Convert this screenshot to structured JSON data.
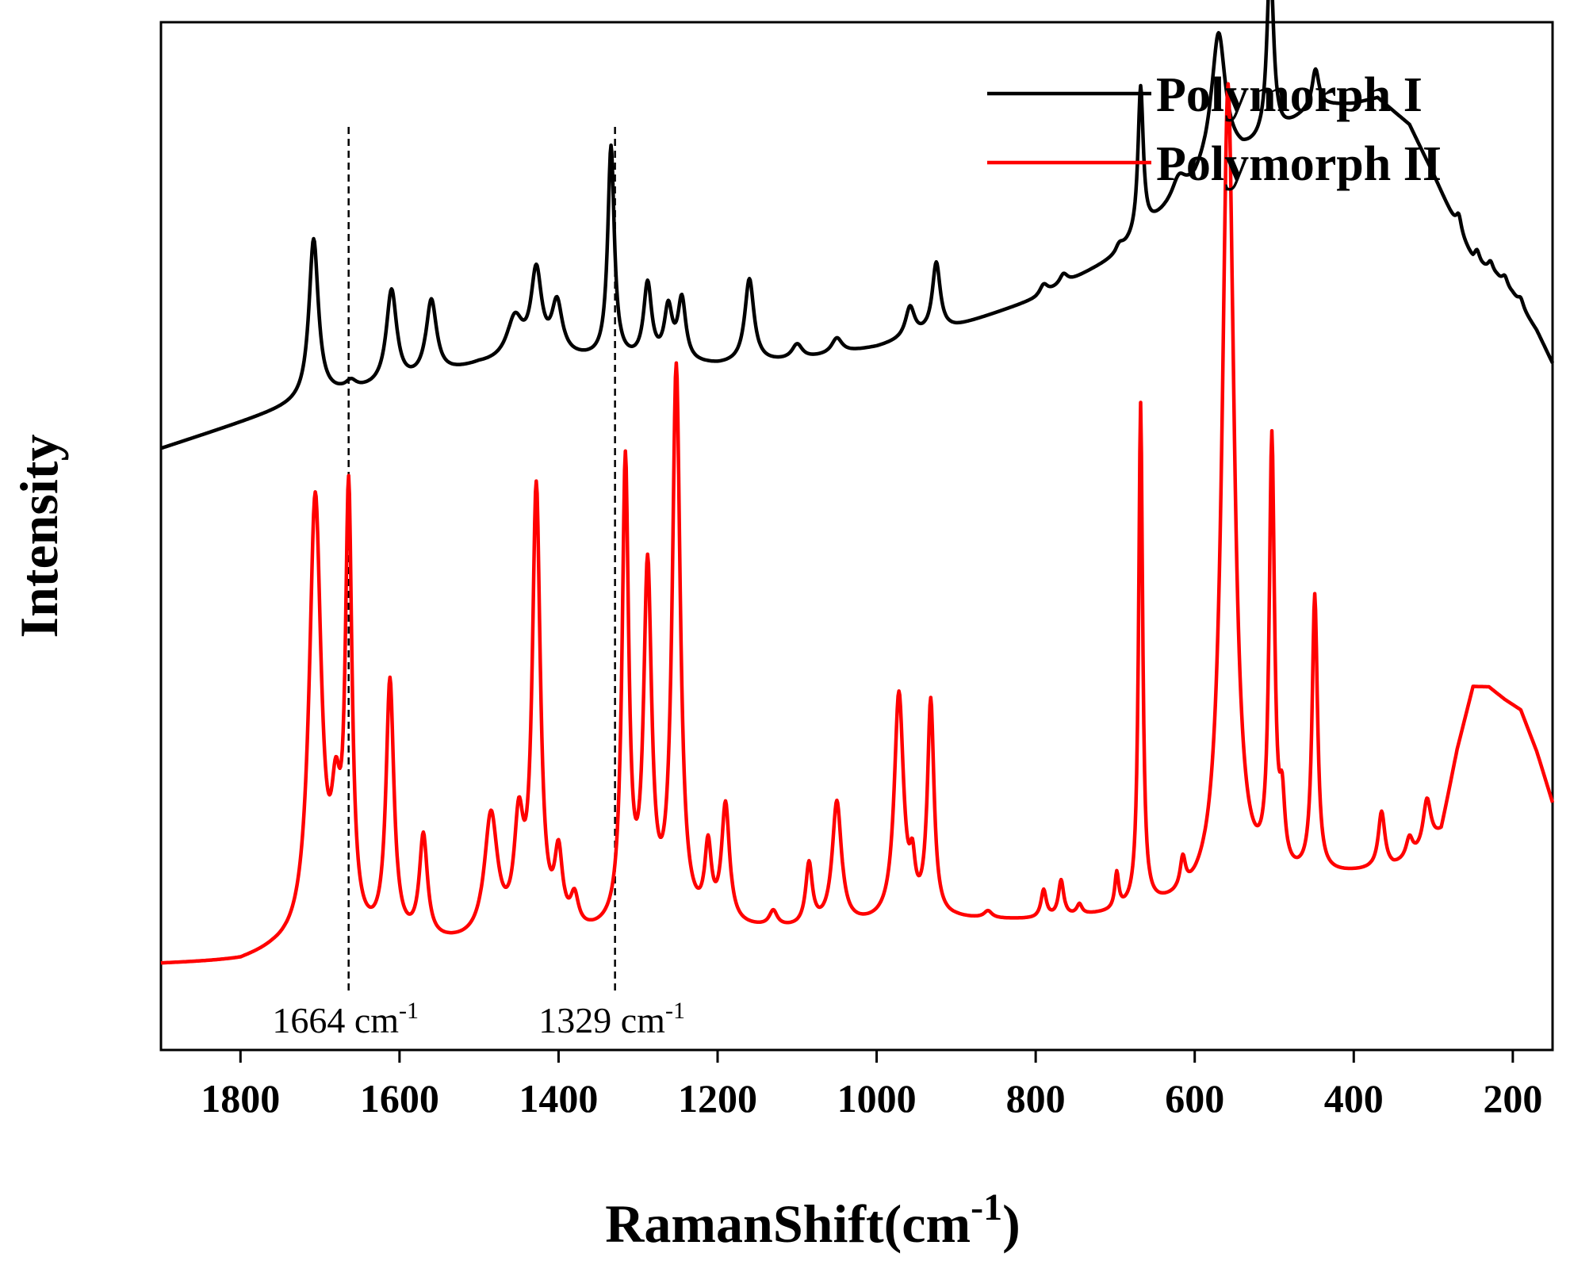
{
  "chart_data": {
    "type": "line",
    "title": "",
    "xlabel": "RamanShift(cm",
    "xlabel_sup": "-1",
    "xlabel_end": ")",
    "ylabel": "Intensity",
    "xlim": [
      1900,
      150
    ],
    "ylim": [
      0,
      100
    ],
    "x_ticks": [
      1800,
      1600,
      1400,
      1200,
      1000,
      800,
      600,
      400,
      200
    ],
    "x_tick_labels": [
      "1800",
      "1600",
      "1400",
      "1200",
      "1000",
      "800",
      "600",
      "400",
      "200"
    ],
    "y_ticks_shown": false,
    "legend_position": "top-right",
    "series": [
      {
        "name": "Polymorph I",
        "color": "#000000",
        "baseline": [
          [
            1900,
            58.5
          ],
          [
            1800,
            61
          ],
          [
            1700,
            63.5
          ],
          [
            1600,
            64.5
          ],
          [
            1500,
            66.5
          ],
          [
            1400,
            67.2
          ],
          [
            1300,
            66.8
          ],
          [
            1200,
            66.5
          ],
          [
            1100,
            67
          ],
          [
            1000,
            68.3
          ],
          [
            900,
            70.3
          ],
          [
            800,
            73
          ],
          [
            700,
            77
          ],
          [
            650,
            80.5
          ],
          [
            600,
            84
          ],
          [
            580,
            86.5
          ],
          [
            560,
            87
          ],
          [
            540,
            87
          ],
          [
            500,
            88.5
          ],
          [
            450,
            91.7
          ],
          [
            400,
            92
          ],
          [
            370,
            92.6
          ],
          [
            330,
            90
          ],
          [
            300,
            85.2
          ],
          [
            270,
            80
          ],
          [
            250,
            76.8
          ],
          [
            220,
            75.2
          ],
          [
            200,
            73.5
          ],
          [
            170,
            70
          ],
          [
            150,
            66.8
          ]
        ],
        "peaks": [
          {
            "x": 1708,
            "h": 15.5,
            "w": 7
          },
          {
            "x": 1661,
            "h": 0.8,
            "w": 8
          },
          {
            "x": 1610,
            "h": 9.3,
            "w": 8
          },
          {
            "x": 1560,
            "h": 7.4,
            "w": 8
          },
          {
            "x": 1455,
            "h": 4.0,
            "w": 12
          },
          {
            "x": 1428,
            "h": 8.2,
            "w": 8
          },
          {
            "x": 1402,
            "h": 5.0,
            "w": 8
          },
          {
            "x": 1334,
            "h": 20.7,
            "w": 5
          },
          {
            "x": 1288,
            "h": 7.4,
            "w": 6
          },
          {
            "x": 1262,
            "h": 5.0,
            "w": 6
          },
          {
            "x": 1245,
            "h": 6.0,
            "w": 6
          },
          {
            "x": 1160,
            "h": 8.2,
            "w": 7
          },
          {
            "x": 1100,
            "h": 1.5,
            "w": 8
          },
          {
            "x": 1050,
            "h": 1.5,
            "w": 8
          },
          {
            "x": 958,
            "h": 3.0,
            "w": 7
          },
          {
            "x": 925,
            "h": 6.7,
            "w": 6
          },
          {
            "x": 790,
            "h": 1.0,
            "w": 6
          },
          {
            "x": 765,
            "h": 1.0,
            "w": 6
          },
          {
            "x": 695,
            "h": 0.8,
            "w": 6
          },
          {
            "x": 668,
            "h": 14.3,
            "w": 4
          },
          {
            "x": 620,
            "h": 2.0,
            "w": 10
          },
          {
            "x": 570,
            "h": 12.0,
            "w": 10
          },
          {
            "x": 505,
            "h": 17.6,
            "w": 5
          },
          {
            "x": 448,
            "h": 3.5,
            "w": 5
          },
          {
            "x": 268,
            "h": 1.6,
            "w": 4
          },
          {
            "x": 245,
            "h": 1.2,
            "w": 4
          },
          {
            "x": 228,
            "h": 1.0,
            "w": 4
          },
          {
            "x": 210,
            "h": 0.9,
            "w": 4
          },
          {
            "x": 190,
            "h": 0.8,
            "w": 4
          }
        ]
      },
      {
        "name": "Polymorph II",
        "color": "#ff0000",
        "baseline": [
          [
            1900,
            8.3
          ],
          [
            1800,
            8.5
          ],
          [
            1760,
            9.3
          ],
          [
            1720,
            9.8
          ],
          [
            1600,
            10.0
          ],
          [
            1500,
            10.0
          ],
          [
            1400,
            10.5
          ],
          [
            1300,
            11.0
          ],
          [
            1200,
            11.5
          ],
          [
            1100,
            11.5
          ],
          [
            1000,
            12.0
          ],
          [
            900,
            12.5
          ],
          [
            800,
            12.5
          ],
          [
            700,
            13.0
          ],
          [
            600,
            14.0
          ],
          [
            500,
            15.5
          ],
          [
            450,
            16.5
          ],
          [
            400,
            17.0
          ],
          [
            350,
            17.5
          ],
          [
            310,
            19.0
          ],
          [
            290,
            21.0
          ],
          [
            270,
            29.0
          ],
          [
            250,
            35.2
          ],
          [
            230,
            35.2
          ],
          [
            210,
            34.0
          ],
          [
            190,
            33.0
          ],
          [
            170,
            29.0
          ],
          [
            150,
            24.0
          ]
        ],
        "peaks": [
          {
            "x": 1706,
            "h": 43.0,
            "w": 9
          },
          {
            "x": 1680,
            "h": 10.0,
            "w": 7
          },
          {
            "x": 1664,
            "h": 42.0,
            "w": 5
          },
          {
            "x": 1612,
            "h": 25.0,
            "w": 6
          },
          {
            "x": 1570,
            "h": 10.0,
            "w": 6
          },
          {
            "x": 1485,
            "h": 12.0,
            "w": 10
          },
          {
            "x": 1450,
            "h": 10.0,
            "w": 7
          },
          {
            "x": 1428,
            "h": 43.0,
            "w": 6
          },
          {
            "x": 1400,
            "h": 7.0,
            "w": 6
          },
          {
            "x": 1380,
            "h": 3.0,
            "w": 6
          },
          {
            "x": 1316,
            "h": 45.0,
            "w": 5
          },
          {
            "x": 1288,
            "h": 34.0,
            "w": 6
          },
          {
            "x": 1252,
            "h": 54.0,
            "w": 6
          },
          {
            "x": 1212,
            "h": 7.0,
            "w": 5
          },
          {
            "x": 1190,
            "h": 11.5,
            "w": 6
          },
          {
            "x": 1130,
            "h": 1.5,
            "w": 6
          },
          {
            "x": 1085,
            "h": 6.0,
            "w": 5
          },
          {
            "x": 1050,
            "h": 12.0,
            "w": 7
          },
          {
            "x": 972,
            "h": 22.0,
            "w": 7
          },
          {
            "x": 955,
            "h": 4.0,
            "w": 4
          },
          {
            "x": 932,
            "h": 21.0,
            "w": 5
          },
          {
            "x": 860,
            "h": 0.7,
            "w": 6
          },
          {
            "x": 790,
            "h": 2.7,
            "w": 4
          },
          {
            "x": 768,
            "h": 3.5,
            "w": 4
          },
          {
            "x": 745,
            "h": 1.0,
            "w": 4
          },
          {
            "x": 698,
            "h": 3.5,
            "w": 3
          },
          {
            "x": 668,
            "h": 49.0,
            "w": 3
          },
          {
            "x": 615,
            "h": 3.0,
            "w": 4
          },
          {
            "x": 558,
            "h": 79.0,
            "w": 9
          },
          {
            "x": 503,
            "h": 42.0,
            "w": 4
          },
          {
            "x": 490,
            "h": 6.0,
            "w": 4
          },
          {
            "x": 449,
            "h": 27.0,
            "w": 4
          },
          {
            "x": 365,
            "h": 5.5,
            "w": 5
          },
          {
            "x": 330,
            "h": 2.0,
            "w": 5
          },
          {
            "x": 308,
            "h": 5.0,
            "w": 6
          }
        ]
      }
    ],
    "annotations": [
      {
        "x": 1664,
        "label": "1664 cm",
        "sup": "-1"
      },
      {
        "x": 1329,
        "label": "1329 cm",
        "sup": "-1"
      }
    ]
  }
}
